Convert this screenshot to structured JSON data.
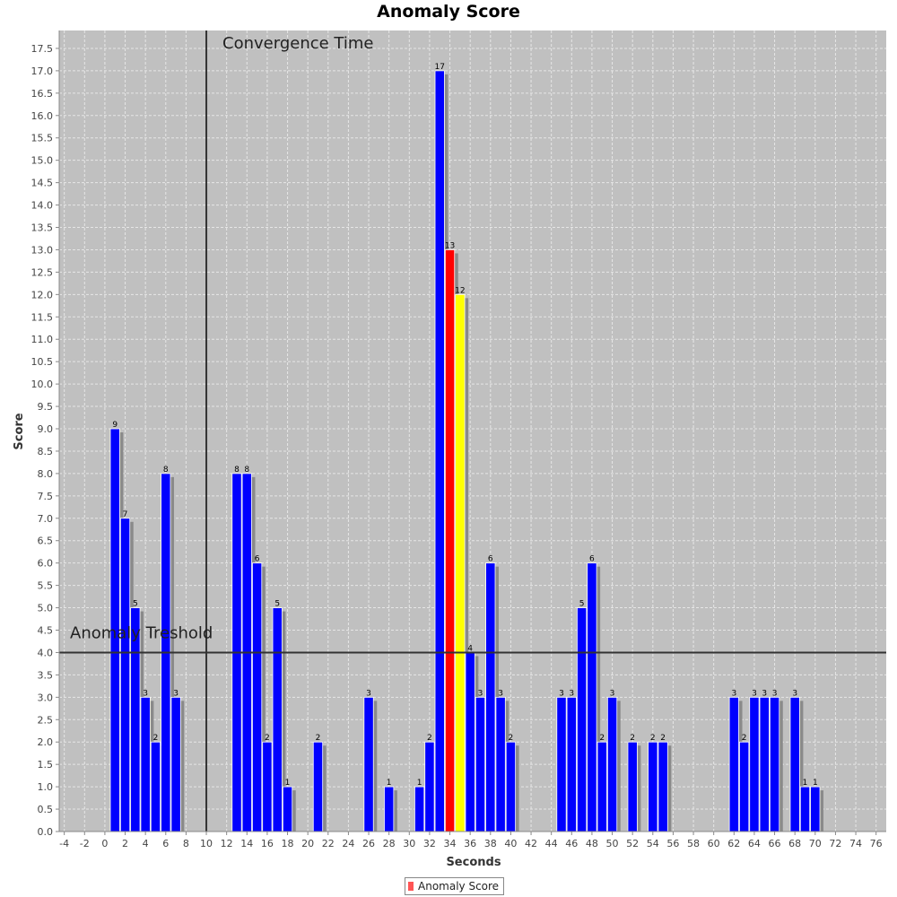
{
  "chart_data": {
    "type": "bar",
    "title": "Anomaly Score",
    "xlabel": "Seconds",
    "ylabel": "Score",
    "xlim": [
      -4.5,
      77
    ],
    "ylim": [
      0,
      17.9
    ],
    "x_ticks": [
      -4,
      -2,
      0,
      2,
      4,
      6,
      8,
      10,
      12,
      14,
      16,
      18,
      20,
      22,
      24,
      26,
      28,
      30,
      32,
      34,
      36,
      38,
      40,
      42,
      44,
      46,
      48,
      50,
      52,
      54,
      56,
      58,
      60,
      62,
      64,
      66,
      68,
      70,
      72,
      74,
      76
    ],
    "y_ticks": [
      0.0,
      0.5,
      1.0,
      1.5,
      2.0,
      2.5,
      3.0,
      3.5,
      4.0,
      4.5,
      5.0,
      5.5,
      6.0,
      6.5,
      7.0,
      7.5,
      8.0,
      8.5,
      9.0,
      9.5,
      10.0,
      10.5,
      11.0,
      11.5,
      12.0,
      12.5,
      13.0,
      13.5,
      14.0,
      14.5,
      15.0,
      15.5,
      16.0,
      16.5,
      17.0,
      17.5
    ],
    "grid": true,
    "legend_position": "bottom-center",
    "series": [
      {
        "name": "Anomaly Score",
        "x": [
          1,
          2,
          3,
          4,
          5,
          6,
          7,
          13,
          14,
          15,
          16,
          17,
          18,
          21,
          26,
          28,
          31,
          32,
          33,
          34,
          35,
          36,
          37,
          38,
          39,
          40,
          45,
          46,
          47,
          48,
          49,
          50,
          52,
          54,
          55,
          62,
          63,
          64,
          65,
          66,
          68,
          69,
          70
        ],
        "values": [
          9,
          7,
          5,
          3,
          2,
          8,
          3,
          8,
          8,
          6,
          2,
          5,
          1,
          2,
          3,
          1,
          1,
          2,
          17,
          13,
          12,
          4,
          3,
          6,
          3,
          2,
          3,
          3,
          5,
          6,
          2,
          3,
          2,
          2,
          2,
          3,
          2,
          3,
          3,
          3,
          3,
          1,
          1
        ]
      }
    ],
    "highlight": [
      {
        "x": 34,
        "color": "#ff0000"
      },
      {
        "x": 35,
        "color": "#ffff00"
      }
    ],
    "markers": [
      {
        "axis": "x",
        "value": 10,
        "label": "Convergence Time"
      },
      {
        "axis": "y",
        "value": 4.0,
        "label": "Anomaly Treshold"
      }
    ],
    "colors": {
      "bar": "#0000ff",
      "bar_shadow": "#8a8a8a",
      "plot_background": "#c0c0c0",
      "gridline": "#e6e6e6",
      "marker_line": "#333333",
      "legend_swatch": "#ff5555"
    }
  }
}
